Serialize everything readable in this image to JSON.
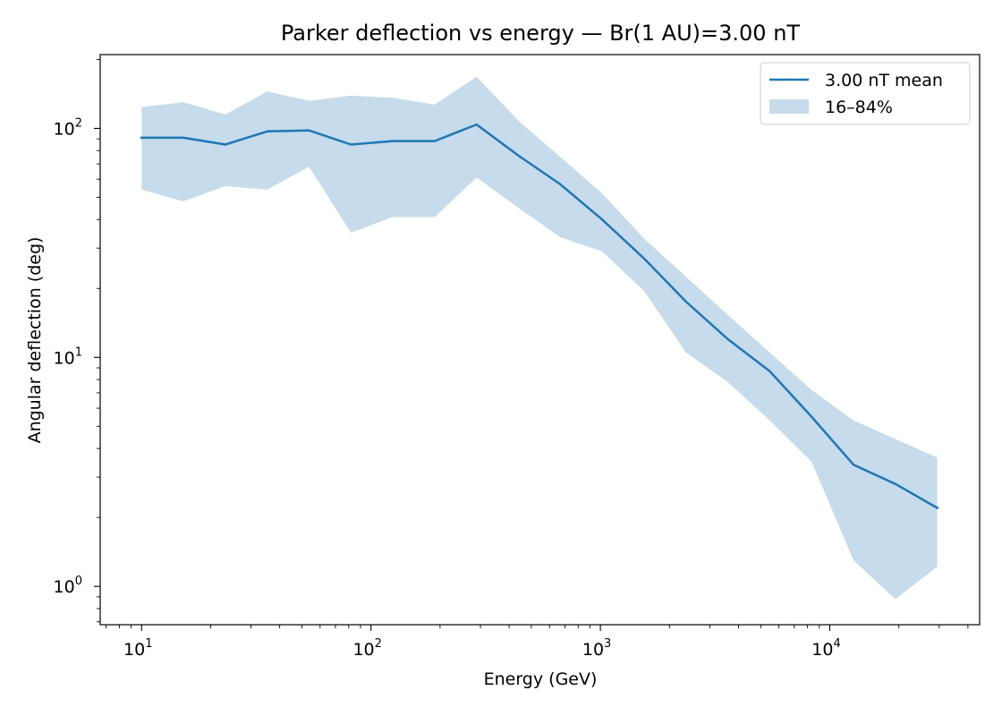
{
  "chart_data": {
    "type": "line",
    "title": "Parker deflection vs energy — Br(1 AU)=3.00 nT",
    "xlabel": "Energy (GeV)",
    "ylabel": "Angular deflection (deg)",
    "xscale": "log",
    "yscale": "log",
    "xlim": [
      6.6,
      45000
    ],
    "ylim": [
      0.68,
      210
    ],
    "grid": false,
    "legend_position": "top-right",
    "x_ticks": [
      {
        "value": 10,
        "base": "10",
        "exp": "1"
      },
      {
        "value": 100,
        "base": "10",
        "exp": "2"
      },
      {
        "value": 1000,
        "base": "10",
        "exp": "3"
      },
      {
        "value": 10000,
        "base": "10",
        "exp": "4"
      }
    ],
    "y_ticks": [
      {
        "value": 1,
        "base": "10",
        "exp": "0"
      },
      {
        "value": 10,
        "base": "10",
        "exp": "1"
      },
      {
        "value": 100,
        "base": "10",
        "exp": "2"
      }
    ],
    "x": [
      10,
      15.2,
      23.2,
      35.3,
      53.7,
      81.8,
      124.5,
      189.6,
      288.6,
      439.4,
      669,
      1018.6,
      1550.8,
      2361.1,
      3594.8,
      5473.1,
      8332.8,
      12686.7,
      19315.5,
      29408.1
    ],
    "series": [
      {
        "name": "3.00 nT mean",
        "color": "#1f77b4",
        "values": [
          91,
          91,
          85,
          97,
          98,
          85,
          88,
          88,
          104,
          76,
          57,
          40,
          27,
          17.5,
          12,
          8.7,
          5.5,
          3.4,
          2.8,
          2.2
        ]
      }
    ],
    "band": {
      "name": "16–84%",
      "color": "#c6dbeb",
      "low": [
        54,
        48,
        56,
        54,
        68,
        35,
        41,
        41,
        61,
        45,
        33.5,
        29,
        19.5,
        10.5,
        7.8,
        5.3,
        3.5,
        1.3,
        0.88,
        1.22
      ],
      "high": [
        124,
        130,
        115,
        145,
        132,
        139,
        136,
        127,
        168,
        108,
        75,
        52,
        33,
        22.5,
        15.3,
        10.5,
        7.2,
        5.3,
        4.4,
        3.65
      ]
    }
  }
}
